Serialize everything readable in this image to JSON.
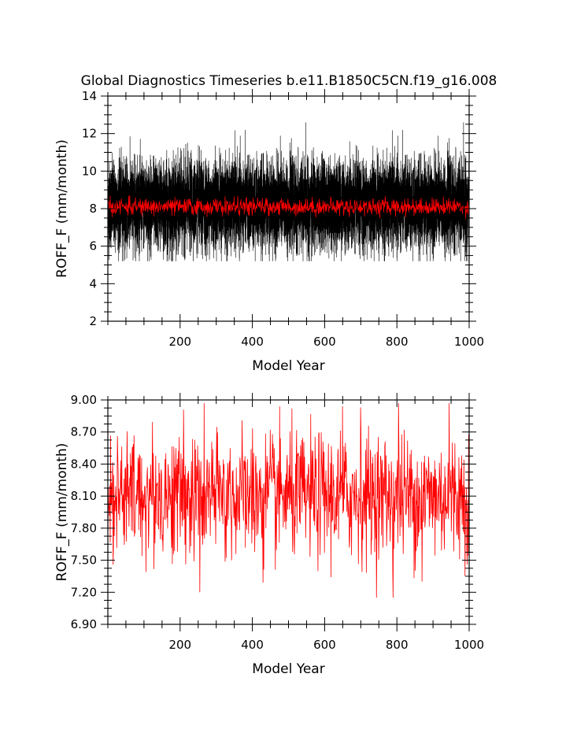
{
  "title": "Global Diagnostics Timeseries b.e11.B1850C5CN.f19_g16.008",
  "colors": {
    "monthly": "#000000",
    "annual": "#ff0000",
    "axes": "#000000"
  },
  "chart_data": [
    {
      "type": "line",
      "title": "Global Diagnostics Timeseries b.e11.B1850C5CN.f19_g16.008",
      "xlabel": "Model Year",
      "ylabel": "ROFF_F (mm/month)",
      "xlim": [
        0,
        1000
      ],
      "ylim": [
        2,
        14
      ],
      "xticks": [
        200,
        400,
        600,
        800,
        1000
      ],
      "yticks": [
        2,
        4,
        6,
        8,
        10,
        12,
        14
      ],
      "ytick_labels": [
        "2",
        "4",
        "6",
        "8",
        "10",
        "12",
        "14"
      ],
      "grid": false,
      "series": [
        {
          "color": "#000000",
          "resolution": "monthly",
          "mean": 8.2,
          "typical_min": 5.7,
          "typical_max": 11.5,
          "peak_max": 12.6,
          "peak_min": 5.2
        },
        {
          "color": "#ff0000",
          "resolution": "annual",
          "mean": 8.1,
          "typical_min": 7.4,
          "typical_max": 8.8
        }
      ]
    },
    {
      "type": "line",
      "xlabel": "Model Year",
      "ylabel": "ROFF_F (mm/month)",
      "xlim": [
        0,
        1000
      ],
      "ylim": [
        6.9,
        9.0
      ],
      "xticks": [
        200,
        400,
        600,
        800,
        1000
      ],
      "yticks": [
        6.9,
        7.2,
        7.5,
        7.8,
        8.1,
        8.4,
        8.7,
        9.0
      ],
      "ytick_labels": [
        "6.90",
        "7.20",
        "7.50",
        "7.80",
        "8.10",
        "8.40",
        "8.70",
        "9.00"
      ],
      "grid": false,
      "series": [
        {
          "color": "#ff0000",
          "resolution": "annual",
          "mean": 8.1,
          "min": 7.15,
          "max": 8.97,
          "extremes": [
            {
              "x": 210,
              "y": 8.91
            },
            {
              "x": 255,
              "y": 7.2
            },
            {
              "x": 430,
              "y": 7.29
            },
            {
              "x": 650,
              "y": 8.94
            },
            {
              "x": 700,
              "y": 8.93
            },
            {
              "x": 790,
              "y": 7.15
            },
            {
              "x": 805,
              "y": 8.97
            },
            {
              "x": 870,
              "y": 7.3
            },
            {
              "x": 945,
              "y": 8.97
            }
          ]
        }
      ]
    }
  ]
}
